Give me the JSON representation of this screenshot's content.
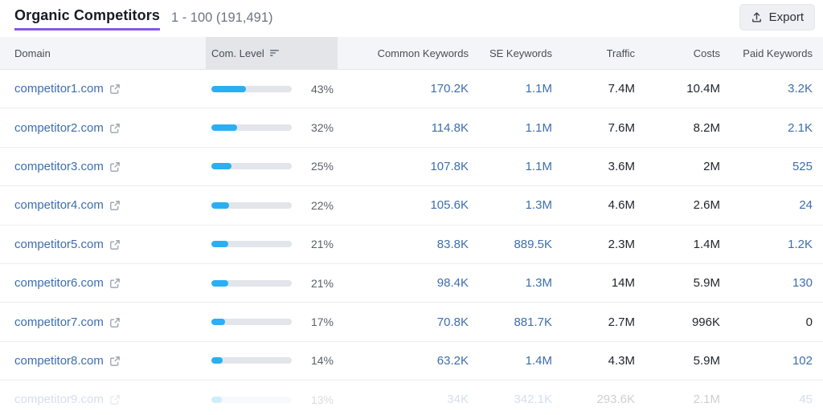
{
  "header": {
    "title": "Organic Competitors",
    "range": "1 - 100 (191,491)",
    "export_label": "Export"
  },
  "table": {
    "columns": [
      "Domain",
      "Com. Level",
      "Common Keywords",
      "SE Keywords",
      "Traffic",
      "Costs",
      "Paid Keywords"
    ],
    "sorted_column": "Com. Level",
    "rows": [
      {
        "domain": "competitor1.com",
        "com_level": "43%",
        "com_level_pct": 43,
        "common_keywords": "170.2K",
        "se_keywords": "1.1M",
        "traffic": "7.4M",
        "costs": "10.4M",
        "paid_keywords": "3.2K"
      },
      {
        "domain": "competitor2.com",
        "com_level": "32%",
        "com_level_pct": 32,
        "common_keywords": "114.8K",
        "se_keywords": "1.1M",
        "traffic": "7.6M",
        "costs": "8.2M",
        "paid_keywords": "2.1K"
      },
      {
        "domain": "competitor3.com",
        "com_level": "25%",
        "com_level_pct": 25,
        "common_keywords": "107.8K",
        "se_keywords": "1.1M",
        "traffic": "3.6M",
        "costs": "2M",
        "paid_keywords": "525"
      },
      {
        "domain": "competitor4.com",
        "com_level": "22%",
        "com_level_pct": 22,
        "common_keywords": "105.6K",
        "se_keywords": "1.3M",
        "traffic": "4.6M",
        "costs": "2.6M",
        "paid_keywords": "24"
      },
      {
        "domain": "competitor5.com",
        "com_level": "21%",
        "com_level_pct": 21,
        "common_keywords": "83.8K",
        "se_keywords": "889.5K",
        "traffic": "2.3M",
        "costs": "1.4M",
        "paid_keywords": "1.2K"
      },
      {
        "domain": "competitor6.com",
        "com_level": "21%",
        "com_level_pct": 21,
        "common_keywords": "98.4K",
        "se_keywords": "1.3M",
        "traffic": "14M",
        "costs": "5.9M",
        "paid_keywords": "130"
      },
      {
        "domain": "competitor7.com",
        "com_level": "17%",
        "com_level_pct": 17,
        "common_keywords": "70.8K",
        "se_keywords": "881.7K",
        "traffic": "2.7M",
        "costs": "996K",
        "paid_keywords": "0",
        "paid_keywords_link": false
      },
      {
        "domain": "competitor8.com",
        "com_level": "14%",
        "com_level_pct": 14,
        "common_keywords": "63.2K",
        "se_keywords": "1.4M",
        "traffic": "4.3M",
        "costs": "5.9M",
        "paid_keywords": "102"
      },
      {
        "domain": "competitor9.com",
        "com_level": "13%",
        "com_level_pct": 13,
        "common_keywords": "34K",
        "se_keywords": "342.1K",
        "traffic": "293.6K",
        "costs": "2.1M",
        "paid_keywords": "45",
        "faded": true
      }
    ]
  },
  "colors": {
    "accent_underline": "#8657e0",
    "link": "#3c6eae",
    "bar_fill": "#2aaff2",
    "bar_track": "#e2e5e9",
    "header_bg": "#f4f5f8",
    "sorted_col_bg": "#e3e5e9"
  }
}
